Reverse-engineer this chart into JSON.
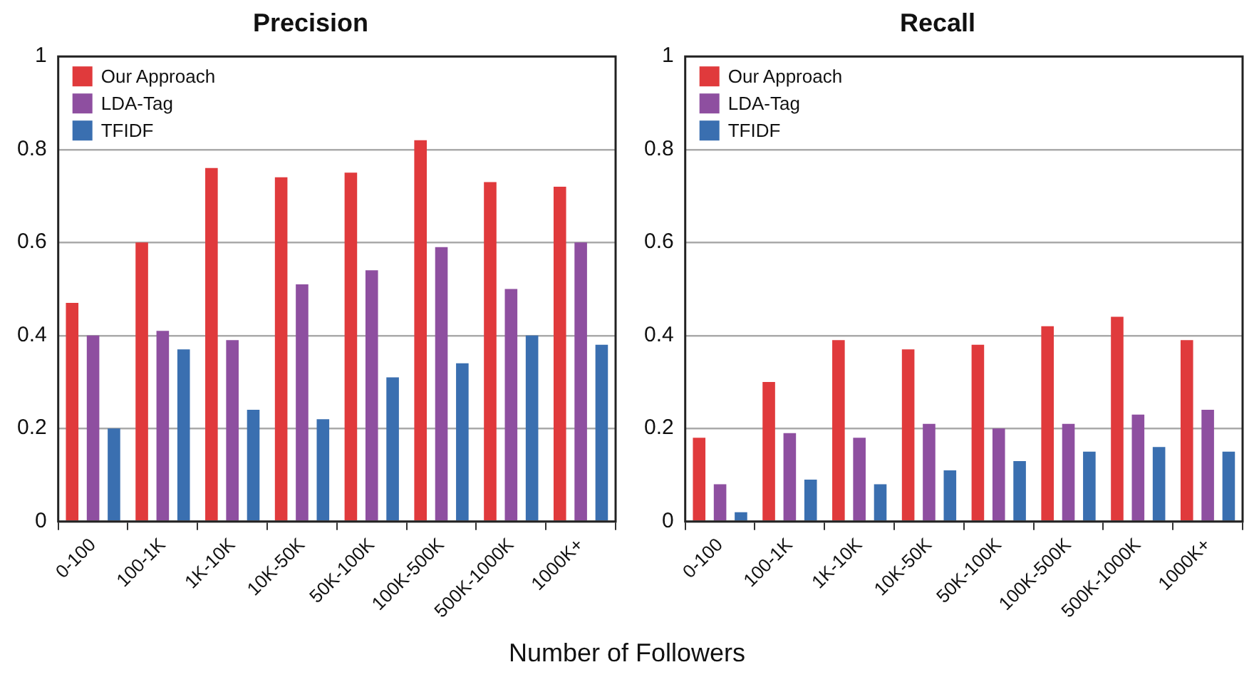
{
  "chart_data": [
    {
      "type": "bar",
      "title": "Precision",
      "xlabel": "Number of Followers",
      "categories": [
        "0-100",
        "100-1K",
        "1K-10K",
        "10K-50K",
        "50K-100K",
        "100K-500K",
        "500K-1000K",
        "1000K+"
      ],
      "series": [
        {
          "name": "Our Approach",
          "color": "#e03a3c",
          "values": [
            0.47,
            0.6,
            0.76,
            0.74,
            0.75,
            0.82,
            0.73,
            0.72
          ]
        },
        {
          "name": "LDA-Tag",
          "color": "#8e4fa0",
          "values": [
            0.4,
            0.41,
            0.39,
            0.51,
            0.54,
            0.59,
            0.5,
            0.6
          ]
        },
        {
          "name": "TFIDF",
          "color": "#3a6fb0",
          "values": [
            0.2,
            0.37,
            0.24,
            0.22,
            0.31,
            0.34,
            0.4,
            0.38
          ]
        }
      ],
      "ylim": [
        0,
        1
      ],
      "yticks": [
        0,
        0.2,
        0.4,
        0.6,
        0.8,
        1
      ],
      "grid": "y",
      "legend": "top left"
    },
    {
      "type": "bar",
      "title": "Recall",
      "categories": [
        "0-100",
        "100-1K",
        "1K-10K",
        "10K-50K",
        "50K-100K",
        "100K-500K",
        "500K-1000K",
        "1000K+"
      ],
      "series": [
        {
          "name": "Our Approach",
          "color": "#e03a3c",
          "values": [
            0.18,
            0.3,
            0.39,
            0.37,
            0.38,
            0.42,
            0.44,
            0.39
          ]
        },
        {
          "name": "LDA-Tag",
          "color": "#8e4fa0",
          "values": [
            0.08,
            0.19,
            0.18,
            0.21,
            0.2,
            0.21,
            0.23,
            0.24
          ]
        },
        {
          "name": "TFIDF",
          "color": "#3a6fb0",
          "values": [
            0.02,
            0.09,
            0.08,
            0.11,
            0.13,
            0.15,
            0.16,
            0.15
          ]
        }
      ],
      "ylim": [
        0,
        1
      ],
      "yticks": [
        0,
        0.2,
        0.4,
        0.6,
        0.8,
        1
      ],
      "grid": "y",
      "legend": "top left"
    }
  ]
}
